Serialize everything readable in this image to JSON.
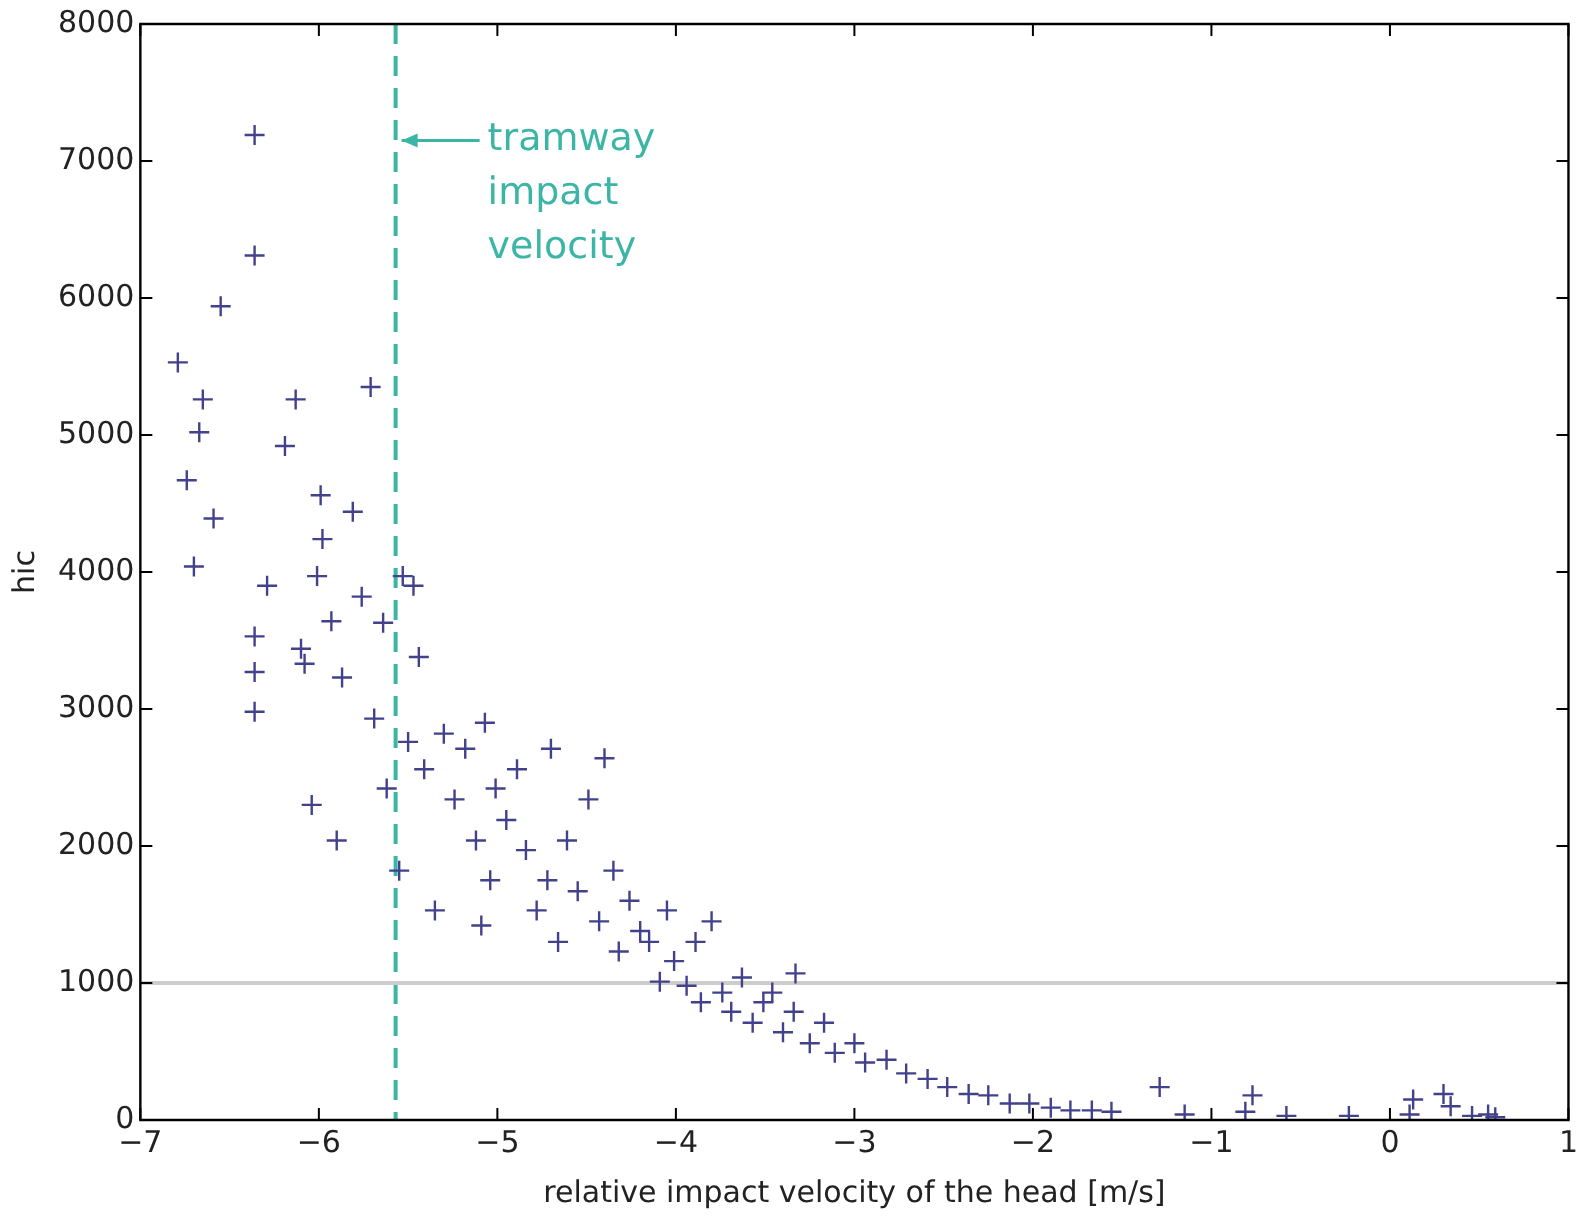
{
  "chart_data": {
    "type": "scatter",
    "xlabel": "relative impact velocity of the head [m/s]",
    "ylabel": "hic",
    "xlim": [
      -7,
      1
    ],
    "ylim": [
      0,
      8000
    ],
    "xticks": [
      {
        "value": -7,
        "label": "−7"
      },
      {
        "value": -6,
        "label": "−6"
      },
      {
        "value": -5,
        "label": "−5"
      },
      {
        "value": -4,
        "label": "−4"
      },
      {
        "value": -3,
        "label": "−3"
      },
      {
        "value": -2,
        "label": "−2"
      },
      {
        "value": -1,
        "label": "−1"
      },
      0,
      1
    ],
    "yticks": [
      0,
      1000,
      2000,
      3000,
      4000,
      5000,
      6000,
      7000,
      8000
    ],
    "grid": false,
    "legend": false,
    "marker": "cross",
    "ref_lines": [
      {
        "axis": "x",
        "value": -5.57,
        "color": "#3bb5a6",
        "line_style": "dashed"
      },
      {
        "axis": "y",
        "value": 1000,
        "color": "#cccccc",
        "line_style": "solid"
      }
    ],
    "annotations": [
      {
        "text": "tramway impact velocity",
        "x": -5.57,
        "y": 7150
      }
    ],
    "series": [
      {
        "color": "#41418c",
        "x": [
          -6.79,
          -6.74,
          -6.7,
          -6.65,
          -6.67,
          -6.59,
          -6.55,
          -6.36,
          -6.36,
          -6.36,
          -6.36,
          -6.36,
          -6.29,
          -6.19,
          -6.13,
          -6.1,
          -6.08,
          -6.04,
          -5.99,
          -5.98,
          -6.01,
          -5.93,
          -5.9,
          -5.87,
          -5.81,
          -5.71,
          -5.76,
          -5.64,
          -5.69,
          -5.62,
          -5.55,
          -5.53,
          -5.47,
          -5.44,
          -5.5,
          -5.41,
          -5.35,
          -5.3,
          -5.24,
          -5.18,
          -5.12,
          -5.07,
          -5.04,
          -5.01,
          -4.95,
          -5.09,
          -4.89,
          -4.84,
          -4.78,
          -4.72,
          -4.7,
          -4.66,
          -4.61,
          -4.55,
          -4.49,
          -4.43,
          -4.4,
          -4.35,
          -4.32,
          -4.26,
          -4.2,
          -4.15,
          -4.09,
          -4.05,
          -4.01,
          -3.94,
          -3.89,
          -3.86,
          -3.8,
          -3.74,
          -3.69,
          -3.63,
          -3.57,
          -3.51,
          -3.46,
          -3.4,
          -3.34,
          -3.33,
          -3.25,
          -3.17,
          -3.11,
          -3.0,
          -2.94,
          -2.82,
          -2.71,
          -2.59,
          -2.48,
          -2.36,
          -2.25,
          -2.13,
          -2.02,
          -1.9,
          -1.79,
          -1.67,
          -1.56,
          -1.29,
          -1.15,
          -0.81,
          -0.77,
          -0.58,
          -0.23,
          0.11,
          0.13,
          0.3,
          0.34,
          0.46,
          0.55,
          0.59
        ],
        "values": [
          5530,
          4670,
          4040,
          5260,
          5020,
          4390,
          5940,
          7190,
          6310,
          3530,
          3270,
          2980,
          3900,
          4920,
          5260,
          3440,
          3330,
          2300,
          4560,
          4240,
          3970,
          3640,
          2040,
          3230,
          4440,
          5350,
          3820,
          3630,
          2930,
          2420,
          1820,
          3970,
          3900,
          3380,
          2760,
          2560,
          1530,
          2820,
          2340,
          2710,
          2040,
          2900,
          1750,
          2420,
          2190,
          1420,
          2560,
          1970,
          1530,
          1750,
          2710,
          1300,
          2040,
          1670,
          2340,
          1450,
          2640,
          1820,
          1230,
          1600,
          1380,
          1300,
          1010,
          1530,
          1160,
          980,
          1300,
          860,
          1450,
          930,
          790,
          1040,
          710,
          860,
          930,
          640,
          790,
          1070,
          560,
          710,
          490,
          560,
          420,
          440,
          340,
          300,
          240,
          190,
          180,
          120,
          120,
          90,
          70,
          70,
          60,
          240,
          40,
          60,
          180,
          30,
          30,
          40,
          150,
          190,
          100,
          30,
          40,
          20
        ]
      }
    ]
  }
}
